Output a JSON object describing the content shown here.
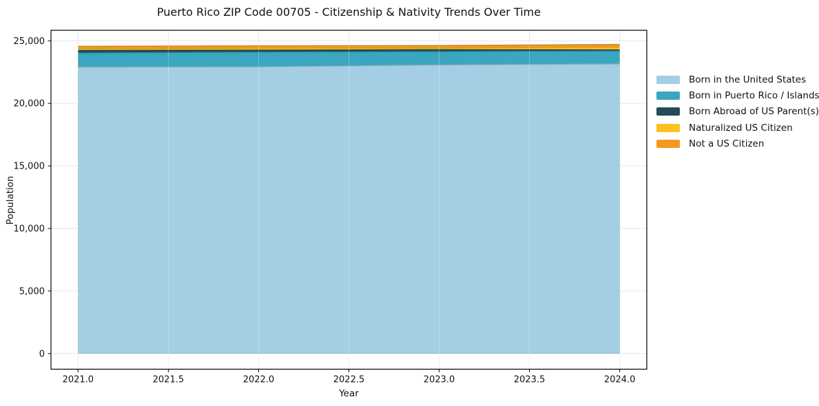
{
  "chart_data": {
    "type": "area",
    "stacked": true,
    "title": "Puerto Rico ZIP Code 00705 - Citizenship & Nativity Trends Over Time",
    "xlabel": "Year",
    "ylabel": "Population",
    "x": [
      2021,
      2022,
      2023,
      2024
    ],
    "series": [
      {
        "name": "Born in the United States",
        "color": "#a3cee4",
        "values": [
          22900,
          22920,
          23070,
          23150
        ]
      },
      {
        "name": "Born in Puerto Rico / Islands",
        "color": "#3aa6c0",
        "values": [
          1120,
          1170,
          1060,
          1030
        ]
      },
      {
        "name": "Born Abroad of US Parent(s)",
        "color": "#254a5c",
        "values": [
          210,
          160,
          160,
          90
        ]
      },
      {
        "name": "Naturalized US Citizen",
        "color": "#fcc21f",
        "values": [
          140,
          150,
          130,
          220
        ]
      },
      {
        "name": "Not a US Citizen",
        "color": "#f6981f",
        "values": [
          190,
          200,
          200,
          220
        ]
      }
    ],
    "stack_totals": [
      24560,
      24600,
      24620,
      24710
    ],
    "x_ticks": [
      "2021.0",
      "2021.5",
      "2022.0",
      "2022.5",
      "2023.0",
      "2023.5",
      "2024.0"
    ],
    "y_ticks": [
      "0",
      "5,000",
      "10,000",
      "15,000",
      "20,000",
      "25,000"
    ],
    "xlim": [
      2020.85,
      2024.15
    ],
    "ylim": [
      -1248,
      25839
    ],
    "grid": true,
    "legend_position": "right-outside",
    "axis_color": "#000000",
    "grid_color": "#e7e7ec"
  }
}
